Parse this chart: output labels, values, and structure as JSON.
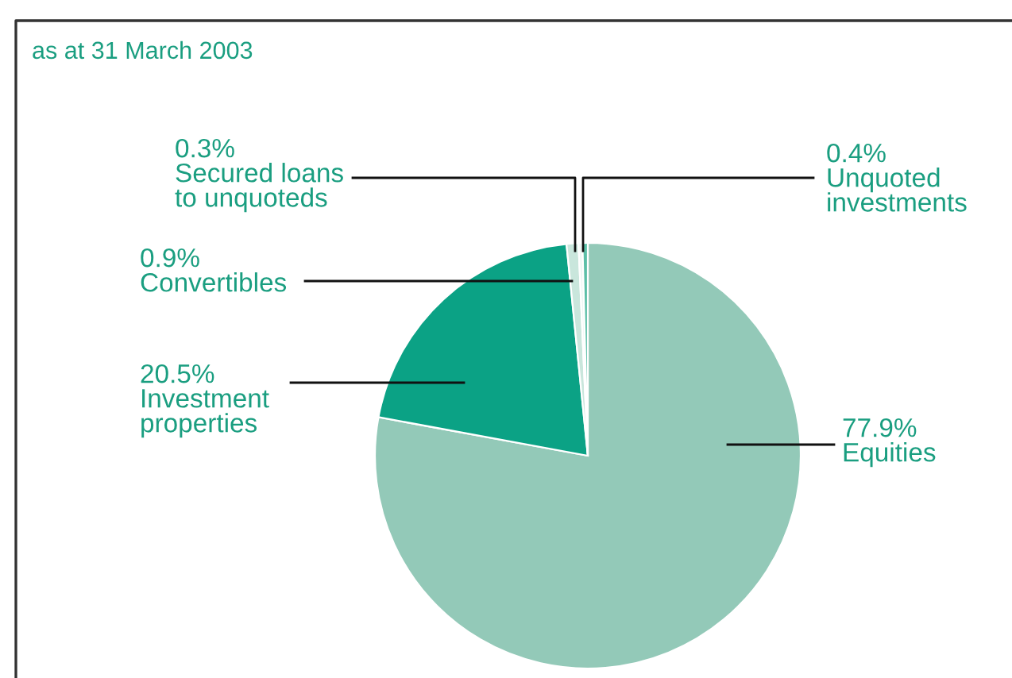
{
  "chart_data": {
    "type": "pie",
    "title": "as at 31 March 2003",
    "categories": [
      "Equities",
      "Investment\nproperties",
      "Convertibles",
      "Secured loans\nto unquoteds",
      "Unquoted\ninvestments"
    ],
    "values": [
      77.9,
      20.5,
      0.9,
      0.3,
      0.4
    ],
    "value_labels": [
      "77.9%",
      "20.5%",
      "0.9%",
      "0.3%",
      "0.4%"
    ],
    "colors": [
      "#93c9b8",
      "#0ba285",
      "#c9e6dc",
      "#eef7f4",
      "#5cbfa7"
    ]
  }
}
